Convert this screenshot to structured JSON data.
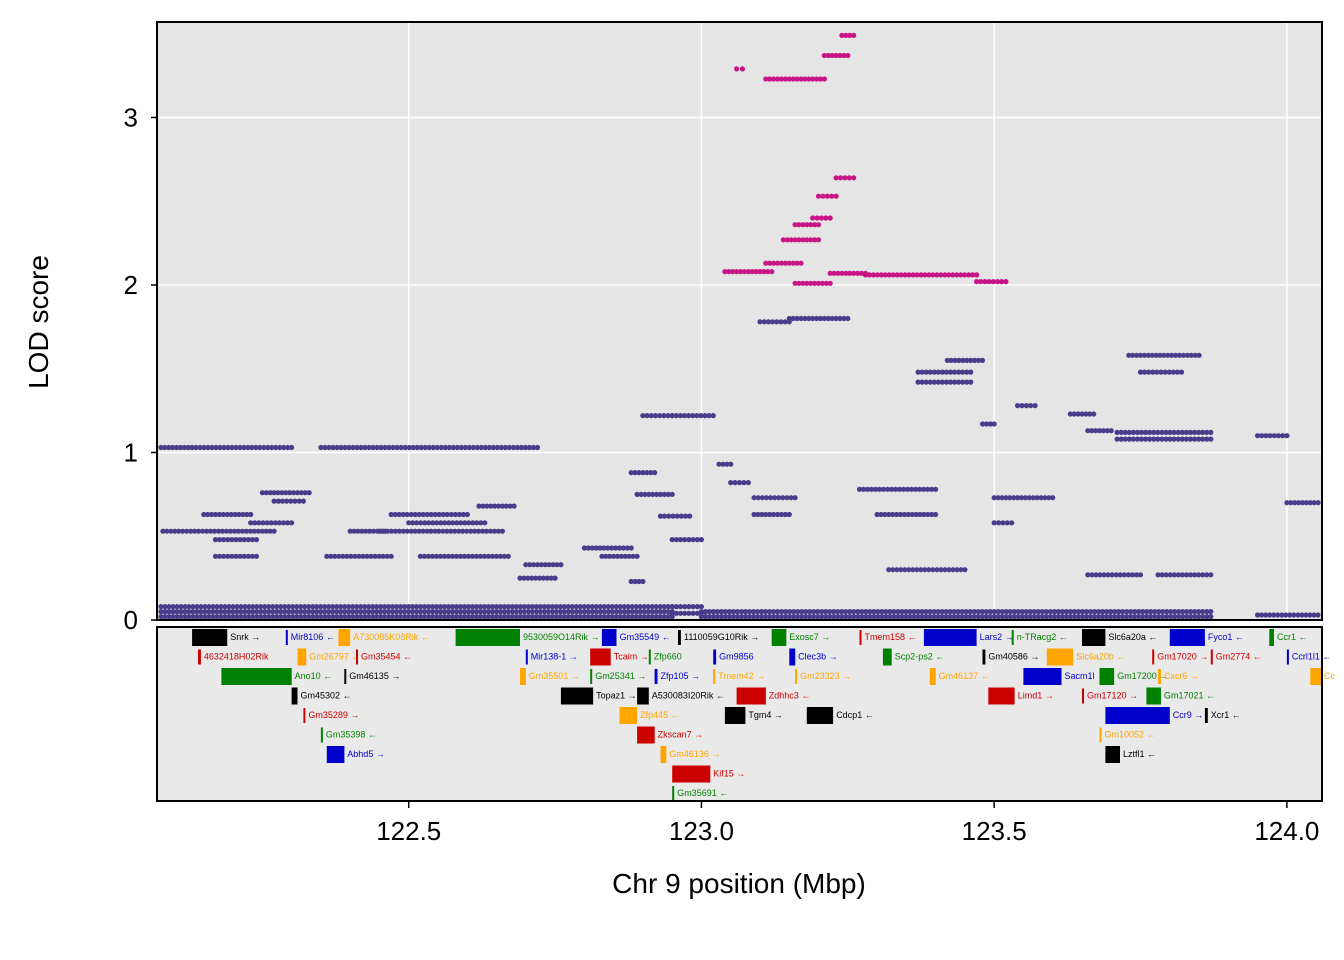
{
  "chart_data": {
    "type": "scatter",
    "xlabel": "Chr 9 position (Mbp)",
    "ylabel": "LOD score",
    "xlim": [
      122.07,
      124.06
    ],
    "ylim": [
      0,
      3.57
    ],
    "x_ticks": [
      {
        "value": 122.5,
        "label": "122.5"
      },
      {
        "value": 123.0,
        "label": "123.0"
      },
      {
        "value": 123.5,
        "label": "123.5"
      },
      {
        "value": 124.0,
        "label": "124.0"
      }
    ],
    "y_ticks": [
      {
        "value": 0,
        "label": "0"
      },
      {
        "value": 1,
        "label": "1"
      },
      {
        "value": 2,
        "label": "2"
      },
      {
        "value": 3,
        "label": "3"
      }
    ],
    "grid": true,
    "colors": {
      "main": "#483D8B",
      "highlight": "#C71585",
      "panel": "#e5e5e5",
      "grid": "#ffffff"
    },
    "series": [
      {
        "color": "#483D8B",
        "segments": [
          [
            122.07,
            122.95,
            0.02
          ],
          [
            122.07,
            122.95,
            0.05
          ],
          [
            122.07,
            122.95,
            0.08
          ],
          [
            122.95,
            123.0,
            0.04
          ],
          [
            122.95,
            123.0,
            0.08
          ],
          [
            123.0,
            123.87,
            0.02
          ],
          [
            123.0,
            123.87,
            0.05
          ],
          [
            123.95,
            124.06,
            0.03
          ],
          [
            122.07,
            122.13,
            1.03
          ],
          [
            122.13,
            122.3,
            1.03
          ],
          [
            122.35,
            122.72,
            1.03
          ],
          [
            122.08,
            122.27,
            0.53
          ],
          [
            122.15,
            122.23,
            0.63
          ],
          [
            122.17,
            122.24,
            0.38
          ],
          [
            122.17,
            122.24,
            0.48
          ],
          [
            122.23,
            122.3,
            0.58
          ],
          [
            122.25,
            122.33,
            0.76
          ],
          [
            122.27,
            122.32,
            0.71
          ],
          [
            122.4,
            122.46,
            0.53
          ],
          [
            122.45,
            122.66,
            0.53
          ],
          [
            122.47,
            122.6,
            0.63
          ],
          [
            122.5,
            122.63,
            0.58
          ],
          [
            122.36,
            122.47,
            0.38
          ],
          [
            122.52,
            122.67,
            0.38
          ],
          [
            122.62,
            122.68,
            0.68
          ],
          [
            122.7,
            122.76,
            0.33
          ],
          [
            122.69,
            122.75,
            0.25
          ],
          [
            122.8,
            122.88,
            0.43
          ],
          [
            122.83,
            122.89,
            0.38
          ],
          [
            122.88,
            122.9,
            0.23
          ],
          [
            122.89,
            122.95,
            0.75
          ],
          [
            122.88,
            122.92,
            0.88
          ],
          [
            122.9,
            122.95,
            1.22
          ],
          [
            122.93,
            122.98,
            0.62
          ],
          [
            122.95,
            123.0,
            0.48
          ],
          [
            122.95,
            123.02,
            1.22
          ],
          [
            123.03,
            123.05,
            0.93
          ],
          [
            123.05,
            123.08,
            0.82
          ],
          [
            123.09,
            123.15,
            0.63
          ],
          [
            123.09,
            123.16,
            0.73
          ],
          [
            123.1,
            123.15,
            1.78
          ],
          [
            123.15,
            123.25,
            1.8
          ],
          [
            123.27,
            123.4,
            0.78
          ],
          [
            123.3,
            123.4,
            0.63
          ],
          [
            123.32,
            123.45,
            0.3
          ],
          [
            123.37,
            123.46,
            1.48
          ],
          [
            123.37,
            123.46,
            1.42
          ],
          [
            123.42,
            123.48,
            1.55
          ],
          [
            123.48,
            123.5,
            1.17
          ],
          [
            123.5,
            123.6,
            0.73
          ],
          [
            123.5,
            123.53,
            0.58
          ],
          [
            123.54,
            123.57,
            1.28
          ],
          [
            123.63,
            123.67,
            1.23
          ],
          [
            123.66,
            123.7,
            1.13
          ],
          [
            123.71,
            123.87,
            1.12
          ],
          [
            123.71,
            123.87,
            1.08
          ],
          [
            123.73,
            123.85,
            1.58
          ],
          [
            123.75,
            123.82,
            1.48
          ],
          [
            123.66,
            123.75,
            0.27
          ],
          [
            123.78,
            123.87,
            0.27
          ],
          [
            123.95,
            124.0,
            1.1
          ],
          [
            124.0,
            124.06,
            0.7
          ]
        ]
      },
      {
        "color": "#C71585",
        "segments": [
          [
            123.04,
            123.12,
            2.08
          ],
          [
            123.16,
            123.22,
            2.01
          ],
          [
            123.22,
            123.28,
            2.07
          ],
          [
            123.28,
            123.47,
            2.06
          ],
          [
            123.47,
            123.52,
            2.02
          ],
          [
            123.11,
            123.17,
            2.13
          ],
          [
            123.14,
            123.2,
            2.27
          ],
          [
            123.16,
            123.2,
            2.36
          ],
          [
            123.19,
            123.22,
            2.4
          ],
          [
            123.2,
            123.23,
            2.53
          ],
          [
            123.23,
            123.26,
            2.64
          ],
          [
            123.11,
            123.21,
            3.23
          ],
          [
            123.06,
            123.07,
            3.29
          ],
          [
            123.21,
            123.25,
            3.37
          ],
          [
            123.24,
            123.26,
            3.49
          ]
        ]
      }
    ],
    "genes": [
      {
        "name": "Snrk",
        "start": 122.13,
        "end": 122.19,
        "dir": "→",
        "row": 0,
        "color": "#000000"
      },
      {
        "name": "Mir8106",
        "start": 122.29,
        "end": 122.292,
        "dir": "←",
        "row": 0,
        "color": "#0000CD"
      },
      {
        "name": "A730085K08Rik",
        "start": 122.38,
        "end": 122.4,
        "dir": "←",
        "row": 0,
        "color": "#FFA500"
      },
      {
        "name": "9530059O14Rik",
        "start": 122.58,
        "end": 122.69,
        "dir": "→",
        "row": 0,
        "color": "#008000"
      },
      {
        "name": "Gm35549",
        "start": 122.83,
        "end": 122.855,
        "dir": "←",
        "row": 0,
        "color": "#0000CD"
      },
      {
        "name": "1110059G10Rik",
        "start": 122.96,
        "end": 122.965,
        "dir": "→",
        "row": 0,
        "color": "#000000"
      },
      {
        "name": "Exosc7",
        "start": 123.12,
        "end": 123.145,
        "dir": "→",
        "row": 0,
        "color": "#008000"
      },
      {
        "name": "Tmem158",
        "start": 123.27,
        "end": 123.272,
        "dir": "←",
        "row": 0,
        "color": "#CD0000"
      },
      {
        "name": "Lars2",
        "start": 123.38,
        "end": 123.47,
        "dir": "→",
        "row": 0,
        "color": "#0000CD"
      },
      {
        "name": "n-TRacg2",
        "start": 123.53,
        "end": 123.532,
        "dir": "←",
        "row": 0,
        "color": "#008000"
      },
      {
        "name": "Slc6a20a",
        "start": 123.65,
        "end": 123.69,
        "dir": "←",
        "row": 0,
        "color": "#000000"
      },
      {
        "name": "Fyco1",
        "start": 123.8,
        "end": 123.86,
        "dir": "←",
        "row": 0,
        "color": "#0000CD"
      },
      {
        "name": "Ccr1",
        "start": 123.97,
        "end": 123.978,
        "dir": "←",
        "row": 0,
        "color": "#008000"
      },
      {
        "name": "4632418H02Rik",
        "start": 122.14,
        "end": 122.145,
        "dir": "",
        "row": 1,
        "color": "#CD0000"
      },
      {
        "name": "Gm26797",
        "start": 122.31,
        "end": 122.325,
        "dir": "←",
        "row": 1,
        "color": "#FFA500"
      },
      {
        "name": "Gm35454",
        "start": 122.41,
        "end": 122.412,
        "dir": "←",
        "row": 1,
        "color": "#CD0000"
      },
      {
        "name": "Mir138-1",
        "start": 122.7,
        "end": 122.702,
        "dir": "→",
        "row": 1,
        "color": "#0000CD"
      },
      {
        "name": "Tcaim",
        "start": 122.81,
        "end": 122.845,
        "dir": "→",
        "row": 1,
        "color": "#CD0000"
      },
      {
        "name": "Zfp660",
        "start": 122.91,
        "end": 122.912,
        "dir": "",
        "row": 1,
        "color": "#008000"
      },
      {
        "name": "Gm9856",
        "start": 123.02,
        "end": 123.025,
        "dir": "",
        "row": 1,
        "color": "#0000CD"
      },
      {
        "name": "Clec3b",
        "start": 123.15,
        "end": 123.16,
        "dir": "→",
        "row": 1,
        "color": "#0000CD"
      },
      {
        "name": "Scp2-ps2",
        "start": 123.31,
        "end": 123.325,
        "dir": "←",
        "row": 1,
        "color": "#008000"
      },
      {
        "name": "Gm40586",
        "start": 123.48,
        "end": 123.485,
        "dir": "→",
        "row": 1,
        "color": "#000000"
      },
      {
        "name": "Slc6a20b",
        "start": 123.59,
        "end": 123.635,
        "dir": "←",
        "row": 1,
        "color": "#FFA500"
      },
      {
        "name": "Gm17020",
        "start": 123.77,
        "end": 123.772,
        "dir": "→",
        "row": 1,
        "color": "#CD0000"
      },
      {
        "name": "Gm2774",
        "start": 123.87,
        "end": 123.872,
        "dir": "←",
        "row": 1,
        "color": "#CD0000"
      },
      {
        "name": "Ccrl1l1",
        "start": 124.0,
        "end": 124.002,
        "dir": "←",
        "row": 1,
        "color": "#0000CD"
      },
      {
        "name": "Ano10",
        "start": 122.18,
        "end": 122.3,
        "dir": "←",
        "row": 2,
        "color": "#008000"
      },
      {
        "name": "Gm46135",
        "start": 122.39,
        "end": 122.392,
        "dir": "→",
        "row": 2,
        "color": "#000000"
      },
      {
        "name": "Gm35501",
        "start": 122.69,
        "end": 122.7,
        "dir": "→",
        "row": 2,
        "color": "#FFA500"
      },
      {
        "name": "Gm25341",
        "start": 122.81,
        "end": 122.812,
        "dir": "→",
        "row": 2,
        "color": "#008000"
      },
      {
        "name": "Zfp105",
        "start": 122.92,
        "end": 122.925,
        "dir": "→",
        "row": 2,
        "color": "#0000CD"
      },
      {
        "name": "Tmem42",
        "start": 123.02,
        "end": 123.022,
        "dir": "→",
        "row": 2,
        "color": "#FFA500"
      },
      {
        "name": "Gm23323",
        "start": 123.16,
        "end": 123.162,
        "dir": "→",
        "row": 2,
        "color": "#FFA500"
      },
      {
        "name": "Gm46137",
        "start": 123.39,
        "end": 123.4,
        "dir": "←",
        "row": 2,
        "color": "#FFA500"
      },
      {
        "name": "Sacm1l",
        "start": 123.55,
        "end": 123.615,
        "dir": "→",
        "row": 2,
        "color": "#0000CD"
      },
      {
        "name": "Gm17200",
        "start": 123.68,
        "end": 123.705,
        "dir": "→",
        "row": 2,
        "color": "#008000"
      },
      {
        "name": "Cxcr6",
        "start": 123.78,
        "end": 123.785,
        "dir": "→",
        "row": 2,
        "color": "#FFA500"
      },
      {
        "name": "Cc",
        "start": 124.04,
        "end": 124.06,
        "dir": "",
        "row": 2,
        "color": "#FFA500"
      },
      {
        "name": "Gm45302",
        "start": 122.3,
        "end": 122.31,
        "dir": "←",
        "row": 3,
        "color": "#000000"
      },
      {
        "name": "Topaz1",
        "start": 122.76,
        "end": 122.815,
        "dir": "→",
        "row": 3,
        "color": "#000000"
      },
      {
        "name": "A530083I20Rik",
        "start": 122.89,
        "end": 122.91,
        "dir": "←",
        "row": 3,
        "color": "#000000"
      },
      {
        "name": "Zdhhc3",
        "start": 123.06,
        "end": 123.11,
        "dir": "←",
        "row": 3,
        "color": "#CD0000"
      },
      {
        "name": "Limd1",
        "start": 123.49,
        "end": 123.535,
        "dir": "→",
        "row": 3,
        "color": "#CD0000"
      },
      {
        "name": "Gm17120",
        "start": 123.65,
        "end": 123.652,
        "dir": "→",
        "row": 3,
        "color": "#CD0000"
      },
      {
        "name": "Gm17021",
        "start": 123.76,
        "end": 123.785,
        "dir": "←",
        "row": 3,
        "color": "#008000"
      },
      {
        "name": "Gm35289",
        "start": 122.32,
        "end": 122.322,
        "dir": "→",
        "row": 4,
        "color": "#CD0000"
      },
      {
        "name": "Zfp445",
        "start": 122.86,
        "end": 122.89,
        "dir": "←",
        "row": 4,
        "color": "#FFA500"
      },
      {
        "name": "Tgm4",
        "start": 123.04,
        "end": 123.075,
        "dir": "→",
        "row": 4,
        "color": "#000000"
      },
      {
        "name": "Cdcp1",
        "start": 123.18,
        "end": 123.225,
        "dir": "←",
        "row": 4,
        "color": "#000000"
      },
      {
        "name": "Ccr9",
        "start": 123.69,
        "end": 123.8,
        "dir": "→",
        "row": 4,
        "color": "#0000CD"
      },
      {
        "name": "Xcr1",
        "start": 123.86,
        "end": 123.865,
        "dir": "←",
        "row": 4,
        "color": "#000000"
      },
      {
        "name": "Gm35398",
        "start": 122.35,
        "end": 122.352,
        "dir": "←",
        "row": 5,
        "color": "#008000"
      },
      {
        "name": "Zkscan7",
        "start": 122.89,
        "end": 122.92,
        "dir": "→",
        "row": 5,
        "color": "#CD0000"
      },
      {
        "name": "Gm10052",
        "start": 123.68,
        "end": 123.682,
        "dir": "←",
        "row": 5,
        "color": "#FFA500"
      },
      {
        "name": "Abhd5",
        "start": 122.36,
        "end": 122.39,
        "dir": "→",
        "row": 6,
        "color": "#0000CD"
      },
      {
        "name": "Gm46136",
        "start": 122.93,
        "end": 122.94,
        "dir": "→",
        "row": 6,
        "color": "#FFA500"
      },
      {
        "name": "Lztfl1",
        "start": 123.69,
        "end": 123.715,
        "dir": "←",
        "row": 6,
        "color": "#000000"
      },
      {
        "name": "Kif15",
        "start": 122.95,
        "end": 123.015,
        "dir": "→",
        "row": 7,
        "color": "#CD0000"
      },
      {
        "name": "Gm35691",
        "start": 122.95,
        "end": 122.952,
        "dir": "←",
        "row": 8,
        "color": "#008000"
      }
    ]
  }
}
